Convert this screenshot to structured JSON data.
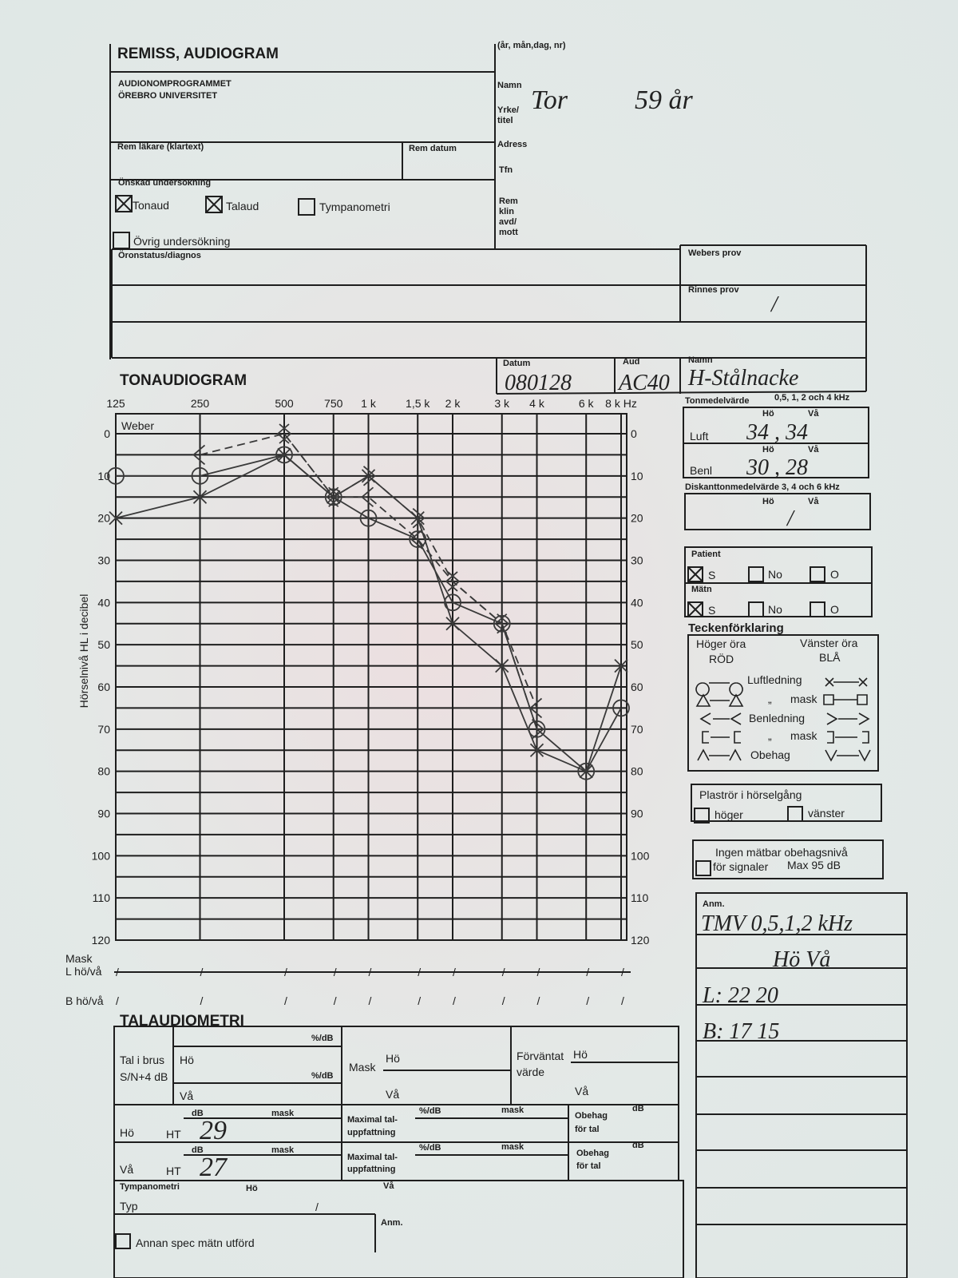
{
  "referral": {
    "title": "REMISS, AUDIOGRAM",
    "institution": [
      "AUDIONOMPROGRAMMET",
      "ÖREBRO UNIVERSITET"
    ],
    "id_label": "(år, mån,dag, nr)",
    "patient_labels": {
      "name": "Namn",
      "occupation": [
        "Yrke/",
        "titel"
      ],
      "address": "Adress",
      "phone": "Tfn",
      "clinic": [
        "Rem",
        "klin",
        "avd/",
        "mott"
      ]
    },
    "patient": {
      "name": "Tor",
      "age": "59 år"
    },
    "doctor_label": "Rem läkare (klartext)",
    "date_label": "Rem datum",
    "requested_label": "Önskad undersökning",
    "exams": [
      {
        "label": "Tonaud",
        "checked": true
      },
      {
        "label": "Talaud",
        "checked": true
      },
      {
        "label": "Tympanometri",
        "checked": false
      },
      {
        "label": "Övrig undersökning",
        "checked": false
      }
    ],
    "diagnosis_label": "Öronstatus/diagnos",
    "weber_label": "Webers prov",
    "rinne_label": "Rinnes prov",
    "rinne_value": "/"
  },
  "tone": {
    "title": "TONAUDIOGRAM",
    "date_label": "Datum",
    "date": "080128",
    "aud_label": "Aud",
    "aud": "AC40",
    "name_label": "Namn",
    "name": "H-Stålnacke",
    "weber": "Weber",
    "mask_label": "Mask",
    "mask_rows": [
      "L hö/vå",
      "B hö/vå"
    ]
  },
  "chart_data": {
    "type": "line",
    "ylabel": "Hörselnivå HL i decibel",
    "x": [
      125,
      250,
      500,
      750,
      1000,
      1500,
      2000,
      3000,
      4000,
      6000,
      8000
    ],
    "xlim": [
      125,
      8000
    ],
    "xscale": "log",
    "xticks": [
      125,
      250,
      500,
      750,
      {
        "value": 1000,
        "label": "1 k"
      },
      {
        "value": 1500,
        "label": "1,5 k"
      },
      {
        "value": 2000,
        "label": "2 k"
      },
      {
        "value": 3000,
        "label": "3 k"
      },
      {
        "value": 4000,
        "label": "4 k"
      },
      {
        "value": 6000,
        "label": "6 k"
      },
      {
        "value": 8000,
        "label": "8 k Hz"
      }
    ],
    "ylim": [
      0,
      120
    ],
    "y_inverted": true,
    "yticks": [
      0,
      10,
      20,
      30,
      40,
      50,
      60,
      70,
      80,
      90,
      100,
      110,
      120
    ],
    "y2lim": [
      0,
      120
    ],
    "y2ticks": [
      0,
      10,
      20,
      30,
      40,
      50,
      60,
      70,
      80,
      90,
      100,
      110,
      120
    ],
    "grid": true,
    "series": [
      {
        "marker": "circle",
        "dash": false,
        "color": "#3a3a3a",
        "values": [
          10,
          10,
          5,
          15,
          20,
          25,
          40,
          45,
          70,
          80,
          65
        ]
      },
      {
        "marker": "cross",
        "dash": false,
        "color": "#3a3a3a",
        "values": [
          20,
          15,
          5,
          15,
          10,
          20,
          45,
          55,
          75,
          80,
          55
        ]
      },
      {
        "marker": "lt",
        "dash": true,
        "color": "#3a3a3a",
        "values": [
          null,
          5,
          0,
          15,
          15,
          25,
          35,
          45,
          65,
          null,
          null
        ]
      },
      {
        "marker": "gt",
        "dash": true,
        "color": "#3a3a3a",
        "values": [
          null,
          null,
          0,
          15,
          10,
          20,
          35,
          45,
          70,
          null,
          null
        ]
      }
    ]
  },
  "summary": {
    "title": "Tonmedelvärde",
    "freqs": "0,5, 1, 2 och 4 kHz",
    "col_labels": [
      "Hö",
      "Vå"
    ],
    "rows": [
      {
        "label": "Luft",
        "value": "34 , 34"
      },
      {
        "label": "Benl",
        "value": "30 , 28"
      }
    ]
  },
  "treble": {
    "title": "Diskanttonmedelvärde 3, 4 och 6 kHz",
    "value": "/"
  },
  "conditions": {
    "patient_label": "Patient",
    "measurement_label": "Mätn",
    "options": [
      "S",
      "No",
      "O"
    ],
    "patient": [
      true,
      false,
      false
    ],
    "measurement": [
      true,
      false,
      false
    ]
  },
  "legend": {
    "title": "Teckenförklaring",
    "right": [
      "Höger öra",
      "RÖD"
    ],
    "left": [
      "Vänster öra",
      "BLÅ"
    ],
    "rows": [
      "Luftledning",
      "mask",
      "Benledning",
      "mask",
      "Obehag"
    ],
    "ditto": "„"
  },
  "tube": {
    "label": "Plaströr i hörselgång",
    "options": [
      "höger",
      "vänster"
    ]
  },
  "discomfort": {
    "lines": [
      "Ingen mätbar obehagsnivå",
      "för signaler"
    ],
    "max": "Max 95 dB"
  },
  "notes": {
    "label": "Anm.",
    "lines": [
      "TMV 0,5,1,2 kHz",
      "Hö  Vå",
      "L:  22  20",
      "B:  17  15"
    ]
  },
  "speech": {
    "title": "TALAUDIOMETRI",
    "noise": [
      "Tal i brus",
      "S/N+4 dB"
    ],
    "unit_pct": "%/dB",
    "ear": [
      "Hö",
      "Vå"
    ],
    "mask": "Mask",
    "expected": [
      "Förväntat",
      "värde"
    ],
    "db": "dB",
    "mask_small": "mask",
    "ht": "HT",
    "ht_values": [
      29,
      27
    ],
    "max": [
      "Maximal tal-",
      "uppfattning"
    ],
    "discomfort": [
      "Obehag",
      "för tal"
    ],
    "tympanometry": "Tympanometri",
    "type": "Typ",
    "type_value": "/",
    "note": "Anm.",
    "other": "Annan spec mätn utförd"
  }
}
